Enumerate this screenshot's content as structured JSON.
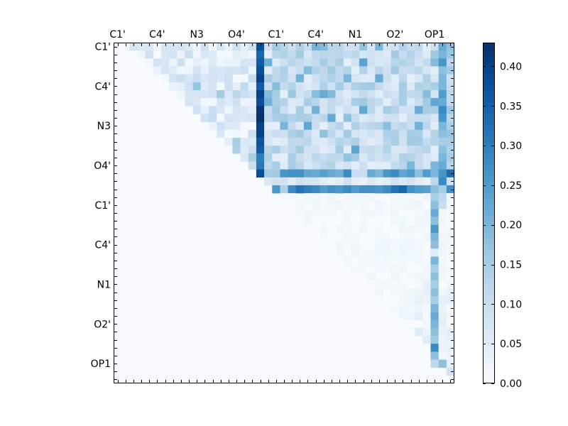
{
  "chart_data": {
    "type": "heatmap",
    "n": 43,
    "x_tick_labels": [
      "C1'",
      "C4'",
      "N3",
      "O4'",
      "C1'",
      "C4'",
      "N1",
      "O2'",
      "OP1"
    ],
    "y_tick_labels": [
      "C1'",
      "C4'",
      "N3",
      "O4'",
      "C1'",
      "C4'",
      "N1",
      "O2'",
      "OP1"
    ],
    "tick_indices": [
      0,
      5,
      10,
      15,
      20,
      25,
      30,
      35,
      40
    ],
    "colorbar_ticks": [
      "0.00",
      "0.05",
      "0.10",
      "0.15",
      "0.20",
      "0.25",
      "0.30",
      "0.35",
      "0.40"
    ],
    "value_range": [
      0.0,
      0.43
    ],
    "colormap": "Blues",
    "colormap_stops": [
      "#f7fbff",
      "#deebf7",
      "#c6dbef",
      "#9ecae1",
      "#6baed6",
      "#4292c6",
      "#2171b5",
      "#08519c",
      "#08306b"
    ],
    "matrix_shape": "upper-triangular",
    "notable_features": {
      "col_18_rows_0_16": [
        0.38,
        0.34,
        0.36,
        0.38,
        0.4,
        0.36,
        0.4,
        0.38,
        0.42,
        0.43,
        0.4,
        0.4,
        0.37,
        0.36,
        0.3,
        0.31,
        0.38
      ],
      "row_16_cols_21_42": [
        0.26,
        0.27,
        0.27,
        0.23,
        0.22,
        0.24,
        0.22,
        0.21,
        0.28,
        0.1,
        0.1,
        0.22,
        0.2,
        0.26,
        0.28,
        0.23,
        0.25,
        0.18,
        0.25,
        0.2,
        0.38,
        0.33
      ],
      "row_18_cols_20_42": [
        0.26,
        0.14,
        0.28,
        0.32,
        0.3,
        0.28,
        0.25,
        0.27,
        0.26,
        0.28,
        0.25,
        0.27,
        0.27,
        0.26,
        0.28,
        0.32,
        0.34,
        0.27,
        0.25,
        0.24,
        0.26,
        0.28,
        0.27
      ],
      "col_40_rows_17_40": [
        0.12,
        0.18,
        0.15,
        0.18,
        0.22,
        0.18,
        0.26,
        0.2,
        0.18,
        0.05,
        0.2,
        0.15,
        0.18,
        0.15,
        0.18,
        0.15,
        0.2,
        0.22,
        0.2,
        0.18,
        0.16,
        0.28,
        0.18,
        0.12
      ],
      "col_41_rows_0_20": [
        0.22,
        0.2,
        0.26,
        0.18,
        0.2,
        0.2,
        0.25,
        0.22,
        0.28,
        0.26,
        0.2,
        0.18,
        0.15,
        0.18,
        0.2,
        0.22,
        0.26,
        0.28,
        0.15,
        0.12,
        0.1
      ]
    }
  }
}
